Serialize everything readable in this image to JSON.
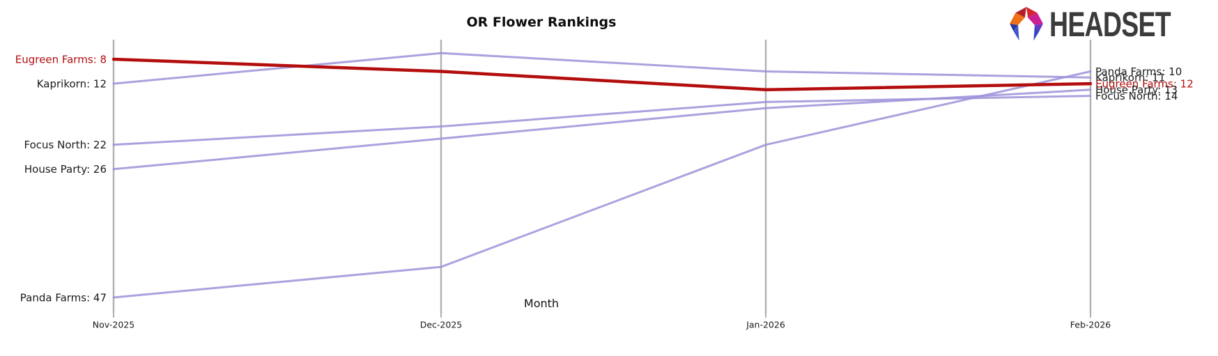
{
  "page": {
    "background": "#ffffff"
  },
  "header": {
    "title": "OR Flower Rankings"
  },
  "axis": {
    "xlabel": "Month",
    "tick_labels": [
      "Nov-2025",
      "Dec-2025",
      "Jan-2026",
      "Feb-2026"
    ]
  },
  "logo": {
    "brand": "HEADSET",
    "text_color": "#3b3b3b",
    "palette": [
      "#b2202a",
      "#d52531",
      "#ee7119",
      "#cb2095",
      "#2a3699",
      "#4254c8",
      "#6e35c5",
      "#3845c0"
    ]
  },
  "colors": {
    "highlight_red": "#b30d0d",
    "line_purple": "#9b92d8",
    "axis_gray": "#b0b0b0",
    "label_black": "#1a1a1a"
  },
  "chart_data": {
    "type": "line",
    "subtype": "bump-ranking-chart",
    "title": "OR Flower Rankings",
    "xlabel": "Month",
    "x": [
      "Nov-2025",
      "Dec-2025",
      "Jan-2026",
      "Feb-2026"
    ],
    "y_axis_hidden": true,
    "y_meaning": "rank (lower number = higher position on chart)",
    "grid": "vertical-month-gridlines-only",
    "legend": "inline start and end labels",
    "series": [
      {
        "name": "Eugreen Farms",
        "values": [
          8,
          10,
          13,
          12
        ],
        "color": "#b30d0d",
        "highlighted": true,
        "start_label": "Eugreen Farms: 8",
        "end_label": "Eugreen Farms: 12"
      },
      {
        "name": "Kaprikorn",
        "values": [
          12,
          7,
          10,
          11
        ],
        "color": "#9b92d8",
        "highlighted": false,
        "start_label": "Kaprikorn: 12",
        "end_label": "Kaprikorn: 11"
      },
      {
        "name": "Focus North",
        "values": [
          22,
          19,
          15,
          14
        ],
        "color": "#9b92d8",
        "highlighted": false,
        "start_label": "Focus North: 22",
        "end_label": "Focus North: 14"
      },
      {
        "name": "House Party",
        "values": [
          26,
          21,
          16,
          13
        ],
        "color": "#9b92d8",
        "highlighted": false,
        "start_label": "House Party: 26",
        "end_label": "House Party: 13"
      },
      {
        "name": "Panda Farms",
        "values": [
          47,
          42,
          22,
          10
        ],
        "color": "#9b92d8",
        "highlighted": false,
        "start_label": "Panda Farms: 47",
        "end_label": "Panda Farms: 10"
      }
    ]
  }
}
